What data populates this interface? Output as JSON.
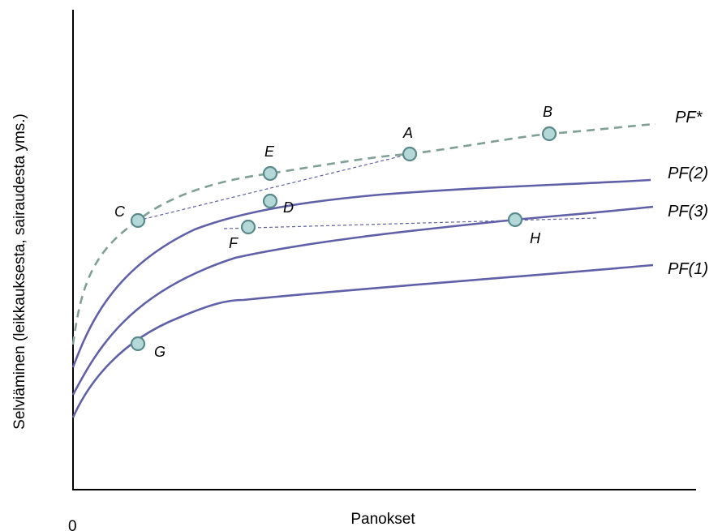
{
  "figure": {
    "ylabel": "Selviäminen (leikkauksesta, sairaudesta yms.)",
    "xlabel": "Panokset",
    "origin": "0",
    "colors": {
      "frontier": "#7f9f97",
      "curve": "#6060a8",
      "point_fill": "#b4d8d8",
      "point_stroke": "#5a8a8a",
      "axis": "#000000"
    }
  },
  "curves": {
    "pf_star": "PF*",
    "pf2": "PF(2)",
    "pf3": "PF(3)",
    "pf1": "PF(1)"
  },
  "points": {
    "a": "A",
    "b": "B",
    "c": "C",
    "d": "D",
    "e": "E",
    "f": "F",
    "g": "G",
    "h": "H"
  }
}
